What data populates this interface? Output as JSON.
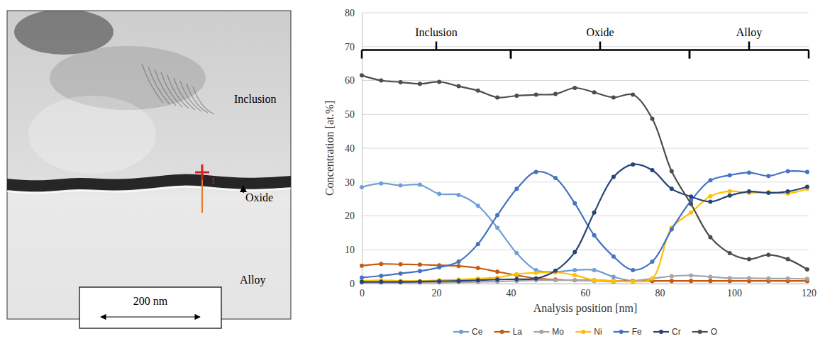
{
  "chart_data": {
    "type": "line",
    "x": [
      0,
      5.2,
      10.4,
      15.6,
      20.8,
      26,
      31.2,
      36.4,
      41.6,
      46.8,
      52,
      57.2,
      62.4,
      67.6,
      72.8,
      78,
      83.2,
      88.4,
      93.6,
      98.8,
      104,
      109.2,
      114.4,
      119.6
    ],
    "series": [
      {
        "name": "Ce",
        "color": "#6f9fd8",
        "values": [
          28.5,
          29.6,
          29,
          29.2,
          26.5,
          26.2,
          23,
          16.5,
          9,
          4,
          3.5,
          4,
          4,
          2,
          0.8,
          0.8,
          0.8,
          0.8,
          0.8,
          0.8,
          0.8,
          0.8,
          0.8,
          0.8
        ]
      },
      {
        "name": "La",
        "color": "#c55a11",
        "values": [
          5.3,
          5.8,
          5.7,
          5.6,
          5.4,
          5.2,
          4.6,
          3.5,
          2.5,
          1.5,
          1.2,
          1,
          1,
          0.8,
          0.8,
          0.8,
          0.8,
          0.8,
          0.8,
          0.8,
          0.8,
          0.8,
          0.8,
          0.8
        ]
      },
      {
        "name": "Mo",
        "color": "#a5a5a5",
        "values": [
          0.3,
          0.3,
          0.3,
          0.3,
          0.3,
          0.4,
          0.5,
          0.6,
          0.8,
          1,
          1,
          1,
          0.8,
          0.6,
          0.8,
          1.5,
          2.2,
          2.4,
          2,
          1.6,
          1.6,
          1.5,
          1.5,
          1.4
        ]
      },
      {
        "name": "Ni",
        "color": "#ffc000",
        "values": [
          0.8,
          1,
          0.8,
          0.8,
          1,
          1.2,
          1.5,
          1.8,
          2.8,
          3.2,
          3.3,
          2.5,
          1,
          0.8,
          0.6,
          1.5,
          16.5,
          21,
          25.8,
          27.3,
          26.8,
          27,
          26.6,
          28
        ]
      },
      {
        "name": "Fe",
        "color": "#4472c4",
        "values": [
          1.8,
          2.3,
          3,
          3.7,
          4.8,
          6.5,
          11.7,
          20.2,
          28,
          33,
          31.2,
          23.7,
          14.3,
          8,
          4,
          6.5,
          16,
          24.5,
          30.5,
          32,
          32.8,
          31.8,
          33.2,
          33
        ]
      },
      {
        "name": "Cr",
        "color": "#264478",
        "values": [
          0.5,
          0.5,
          0.5,
          0.6,
          0.7,
          0.8,
          1,
          1.2,
          1.3,
          1.5,
          3.8,
          9.3,
          21,
          31.5,
          35.2,
          33.5,
          28,
          25.7,
          24.2,
          26,
          27.2,
          26.8,
          27.2,
          28.6
        ]
      },
      {
        "name": "O",
        "color": "#4d4d4d",
        "values": [
          61.5,
          60,
          59.5,
          59,
          59.6,
          58.3,
          57,
          55,
          55.5,
          55.8,
          56,
          57.8,
          56.5,
          55,
          55.8,
          48.7,
          33.2,
          23.5,
          13.7,
          9,
          7.2,
          8.5,
          7.2,
          4.2
        ]
      }
    ],
    "xlim": [
      0,
      120
    ],
    "ylim": [
      0,
      80
    ],
    "xticks": [
      0,
      20,
      40,
      60,
      80,
      100,
      120
    ],
    "yticks": [
      0,
      10,
      20,
      30,
      40,
      50,
      60,
      70,
      80
    ],
    "xlabel": "Analysis position [nm]",
    "ylabel": "Concentration [at.%]",
    "grid": true,
    "legend": "bottom",
    "marker": "circle",
    "regions": [
      {
        "label": "Inclusion",
        "start": 0,
        "end": 40,
        "y": 69
      },
      {
        "label": "Oxide",
        "start": 40,
        "end": 88,
        "y": 69
      },
      {
        "label": "Alloy",
        "start": 88,
        "end": 120,
        "y": 69
      }
    ]
  },
  "micrograph": {
    "labels": {
      "inclusion": "Inclusion",
      "oxide": "Oxide",
      "alloy": "Alloy"
    },
    "scale_bar": "200 nm",
    "point_label": "1"
  }
}
